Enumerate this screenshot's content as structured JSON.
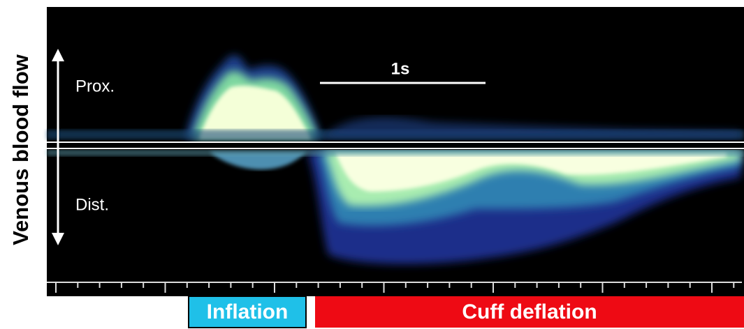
{
  "axis_label": "Venous blood flow",
  "direction_labels": {
    "proximal": "Prox.",
    "distal": "Dist."
  },
  "scale_bar": "1s",
  "phases": [
    "Inflation",
    "Cuff deflation"
  ]
}
